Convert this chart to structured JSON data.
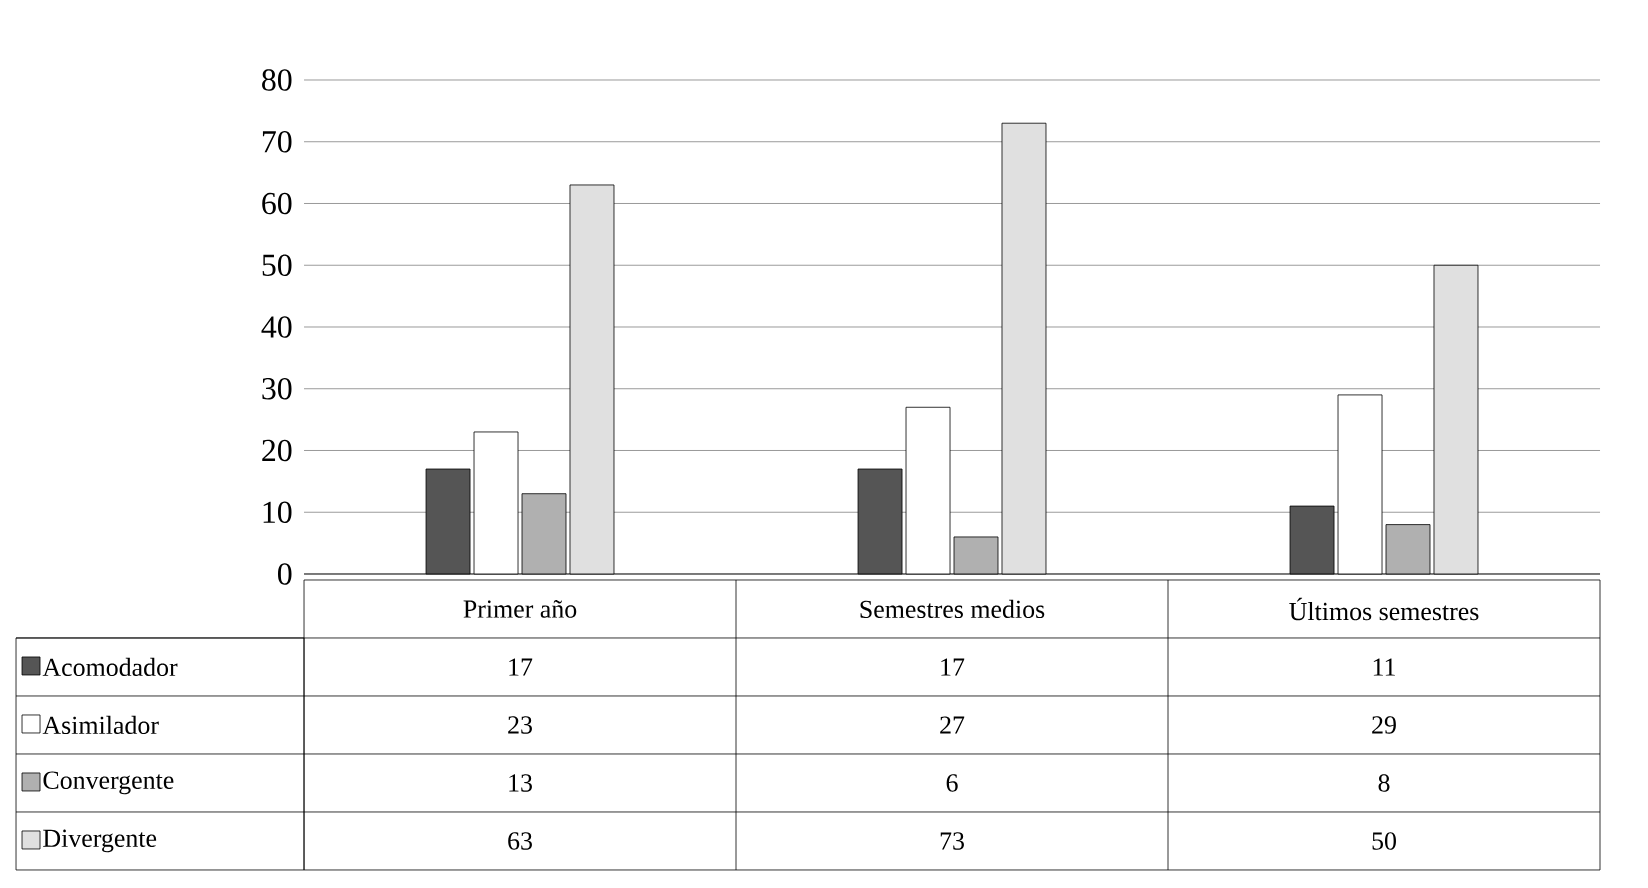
{
  "chart_data": {
    "type": "bar",
    "categories": [
      "Primer año",
      "Semestres medios",
      "Últimos semestres"
    ],
    "series": [
      {
        "name": "Acomodador",
        "color": "#555555",
        "values": [
          17,
          17,
          11
        ]
      },
      {
        "name": "Asimilador",
        "color": "#ffffff",
        "values": [
          23,
          27,
          29
        ]
      },
      {
        "name": "Convergente",
        "color": "#b0b0b0",
        "values": [
          13,
          6,
          8
        ]
      },
      {
        "name": "Divergente",
        "color": "#e0e0e0",
        "values": [
          63,
          73,
          50
        ]
      }
    ],
    "ylim": [
      0,
      80
    ],
    "yticks": [
      0,
      10,
      20,
      30,
      40,
      50,
      60,
      70,
      80
    ],
    "grid": "y",
    "legend": "left",
    "data_labels": true
  }
}
